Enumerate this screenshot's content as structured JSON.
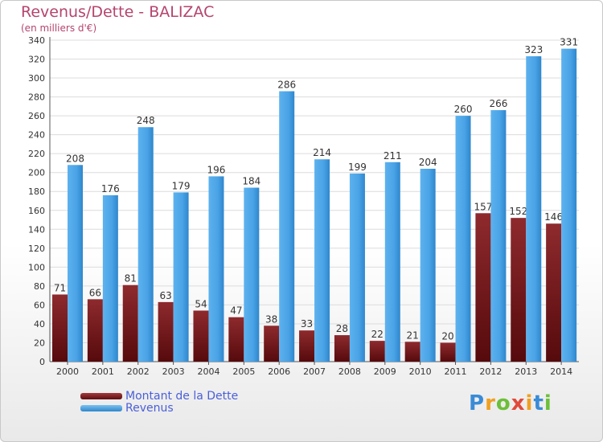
{
  "chart_data": {
    "type": "bar",
    "title": "Revenus/Dette - BALIZAC",
    "subtitle": "(en milliers d'€)",
    "categories": [
      "2000",
      "2001",
      "2002",
      "2003",
      "2004",
      "2005",
      "2006",
      "2007",
      "2008",
      "2009",
      "2010",
      "2011",
      "2012",
      "2013",
      "2014"
    ],
    "series": [
      {
        "name": "Montant de la Dette",
        "color": "#7a1f22",
        "values": [
          71,
          66,
          81,
          63,
          54,
          47,
          38,
          33,
          28,
          22,
          21,
          20,
          157,
          152,
          146
        ]
      },
      {
        "name": "Revenus",
        "color": "#4aa3e6",
        "values": [
          208,
          176,
          248,
          179,
          196,
          184,
          286,
          214,
          199,
          211,
          204,
          260,
          266,
          323,
          331
        ]
      }
    ],
    "ylim": [
      0,
      340
    ],
    "ytick_step": 20,
    "grid": true,
    "legend": "bottom-left"
  },
  "brand": {
    "logo_text": "Proxiti"
  }
}
